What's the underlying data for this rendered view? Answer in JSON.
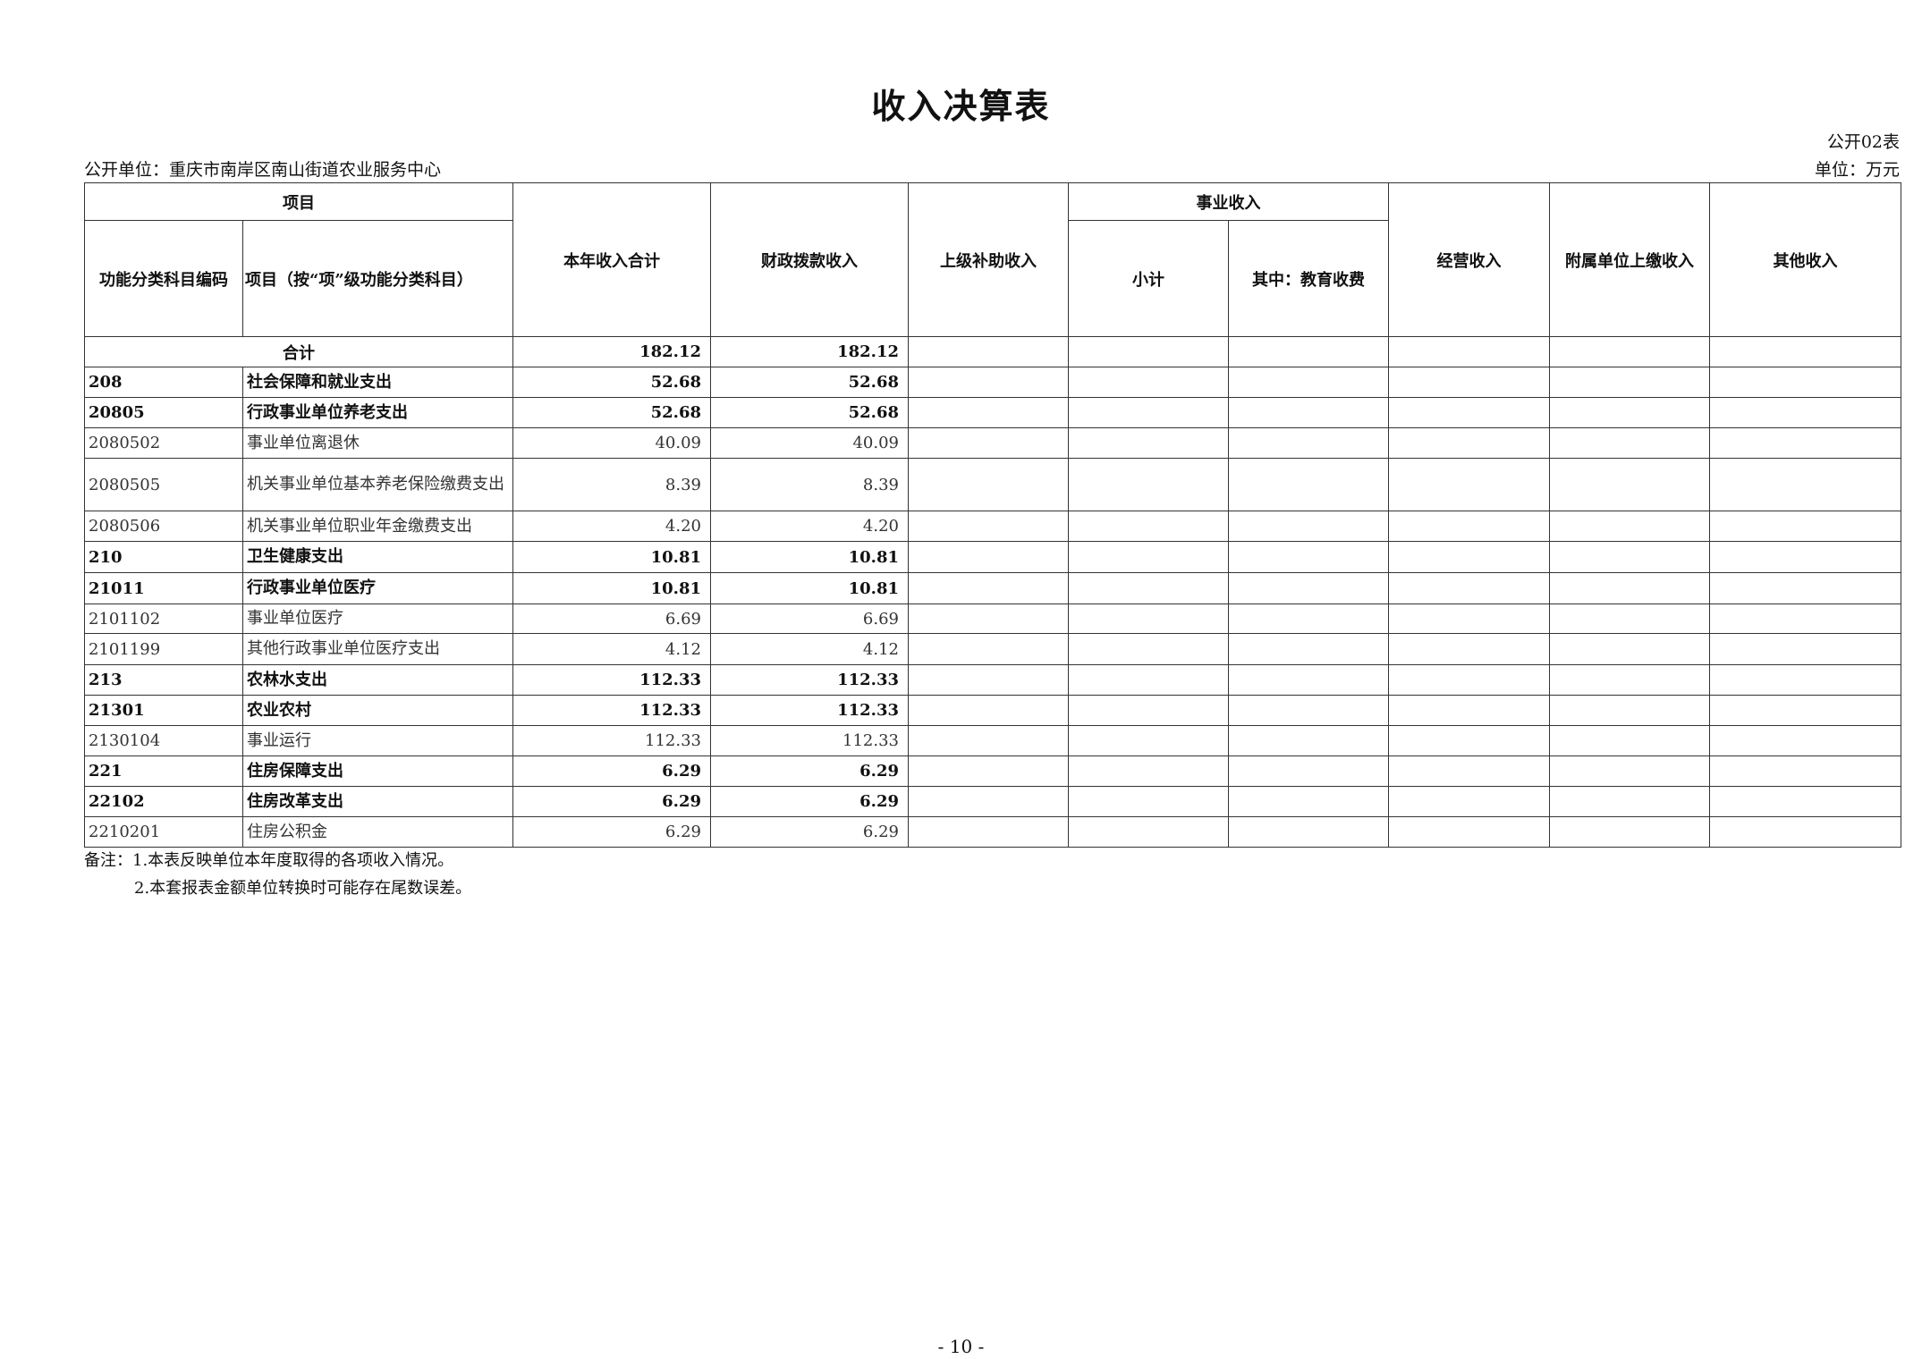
{
  "title": "收入决算表",
  "form_no": "公开02表",
  "unit_name": "公开单位：重庆市南岸区南山街道农业服务中心",
  "unit": "单位：万元",
  "headers": {
    "item_group": "项目",
    "code": "功能分类科目编码",
    "name": "项目（按“项”级功能分类科目）",
    "total": "本年收入合计",
    "fiscal": "财政拨款收入",
    "superior": "上级补助收入",
    "business_group": "事业收入",
    "subtotal": "小计",
    "education": "其中：教育收费",
    "operating": "经营收入",
    "affiliated": "附属单位上缴收入",
    "other": "其他收入"
  },
  "total_row": {
    "label": "合计",
    "total": "182.12",
    "fiscal": "182.12"
  },
  "rows": [
    {
      "code": "208",
      "name": "社会保障和就业支出",
      "total": "52.68",
      "fiscal": "52.68",
      "level": 1
    },
    {
      "code": "20805",
      "name": "行政事业单位养老支出",
      "total": "52.68",
      "fiscal": "52.68",
      "level": 2
    },
    {
      "code": "2080502",
      "name": "事业单位离退休",
      "total": "40.09",
      "fiscal": "40.09",
      "level": 3
    },
    {
      "code": "2080505",
      "name": "机关事业单位基本养老保险缴费支出",
      "total": "8.39",
      "fiscal": "8.39",
      "level": 3
    },
    {
      "code": "2080506",
      "name": "机关事业单位职业年金缴费支出",
      "total": "4.20",
      "fiscal": "4.20",
      "level": 3
    },
    {
      "code": "210",
      "name": "卫生健康支出",
      "total": "10.81",
      "fiscal": "10.81",
      "level": 1
    },
    {
      "code": "21011",
      "name": "行政事业单位医疗",
      "total": "10.81",
      "fiscal": "10.81",
      "level": 2
    },
    {
      "code": "2101102",
      "name": "事业单位医疗",
      "total": "6.69",
      "fiscal": "6.69",
      "level": 3
    },
    {
      "code": "2101199",
      "name": "其他行政事业单位医疗支出",
      "total": "4.12",
      "fiscal": "4.12",
      "level": 3
    },
    {
      "code": "213",
      "name": "农林水支出",
      "total": "112.33",
      "fiscal": "112.33",
      "level": 1
    },
    {
      "code": "21301",
      "name": "农业农村",
      "total": "112.33",
      "fiscal": "112.33",
      "level": 2
    },
    {
      "code": "2130104",
      "name": "事业运行",
      "total": "112.33",
      "fiscal": "112.33",
      "level": 3
    },
    {
      "code": "221",
      "name": "住房保障支出",
      "total": "6.29",
      "fiscal": "6.29",
      "level": 1
    },
    {
      "code": "22102",
      "name": "住房改革支出",
      "total": "6.29",
      "fiscal": "6.29",
      "level": 2
    },
    {
      "code": "2210201",
      "name": "住房公积金",
      "total": "6.29",
      "fiscal": "6.29",
      "level": 3
    }
  ],
  "notes": [
    "备注：1.本表反映单位本年度取得的各项收入情况。",
    "2.本套报表金额单位转换时可能存在尾数误差。"
  ],
  "page_number": "- 10 -"
}
